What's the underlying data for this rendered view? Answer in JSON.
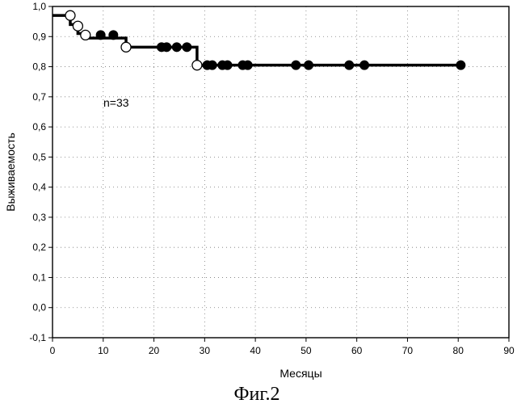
{
  "chart_data": {
    "type": "line",
    "subtype": "kaplan-meier step curve with event and censoring markers",
    "xlabel": "Месяцы",
    "ylabel": "Выживаемость",
    "annotation": "n=33",
    "caption": "Фиг.2",
    "xlim": [
      0,
      90
    ],
    "ylim": [
      -0.1,
      1.0
    ],
    "x_ticks": [
      0,
      10,
      20,
      30,
      40,
      50,
      60,
      70,
      80,
      90
    ],
    "x_tick_labels": [
      "0",
      "10",
      "20",
      "30",
      "40",
      "50",
      "60",
      "70",
      "80",
      "90"
    ],
    "y_ticks": [
      1.0,
      0.9,
      0.8,
      0.7,
      0.6,
      0.5,
      0.4,
      0.3,
      0.2,
      0.1,
      0.0,
      -0.1
    ],
    "y_tick_labels": [
      "1,0",
      "0,9",
      "0,8",
      "0,7",
      "0,6",
      "0,5",
      "0,4",
      "0,3",
      "0,2",
      "0,1",
      "0,0",
      "-0,1"
    ],
    "grid": "dotted",
    "legend": "none",
    "series": [
      {
        "step_x": [
          0,
          3.5,
          3.5,
          5,
          5,
          6.5,
          6.5,
          14.5,
          14.5,
          28.5,
          28.5,
          80.5
        ],
        "step_y": [
          0.97,
          0.97,
          0.94,
          0.94,
          0.91,
          0.91,
          0.895,
          0.895,
          0.865,
          0.865,
          0.805,
          0.805
        ],
        "open_points": [
          {
            "x": 3.5,
            "y": 0.97
          },
          {
            "x": 5.0,
            "y": 0.935
          },
          {
            "x": 6.5,
            "y": 0.905
          },
          {
            "x": 14.5,
            "y": 0.865
          },
          {
            "x": 28.5,
            "y": 0.805
          }
        ],
        "filled_points": [
          {
            "x": 9.5,
            "y": 0.905
          },
          {
            "x": 12,
            "y": 0.905
          },
          {
            "x": 21.5,
            "y": 0.865
          },
          {
            "x": 22.5,
            "y": 0.865
          },
          {
            "x": 24.5,
            "y": 0.865
          },
          {
            "x": 26.5,
            "y": 0.865
          },
          {
            "x": 30.5,
            "y": 0.805
          },
          {
            "x": 31.5,
            "y": 0.805
          },
          {
            "x": 33.5,
            "y": 0.805
          },
          {
            "x": 34.5,
            "y": 0.805
          },
          {
            "x": 37.5,
            "y": 0.805
          },
          {
            "x": 38.5,
            "y": 0.805
          },
          {
            "x": 48,
            "y": 0.805
          },
          {
            "x": 50.5,
            "y": 0.805
          },
          {
            "x": 58.5,
            "y": 0.805
          },
          {
            "x": 61.5,
            "y": 0.805
          },
          {
            "x": 80.5,
            "y": 0.805
          }
        ]
      }
    ]
  }
}
